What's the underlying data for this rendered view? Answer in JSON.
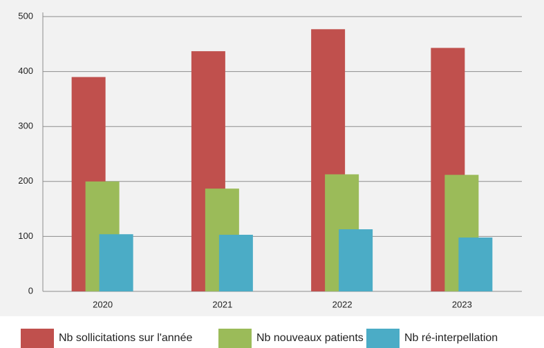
{
  "chart_data": {
    "type": "bar",
    "categories": [
      "2020",
      "2021",
      "2022",
      "2023"
    ],
    "series": [
      {
        "name": "Nb sollicitations sur l'année",
        "color": "#c0504d",
        "values": [
          390,
          437,
          477,
          443
        ]
      },
      {
        "name": "Nb nouveaux patients",
        "color": "#9bbb59",
        "values": [
          200,
          187,
          213,
          212
        ]
      },
      {
        "name": "Nb ré-interpellation",
        "color": "#4bacc6",
        "values": [
          104,
          103,
          113,
          98
        ]
      }
    ],
    "ylim": [
      0,
      500
    ],
    "yticks": [
      0,
      100,
      200,
      300,
      400,
      500
    ],
    "grid": true,
    "legend": "bottom"
  }
}
